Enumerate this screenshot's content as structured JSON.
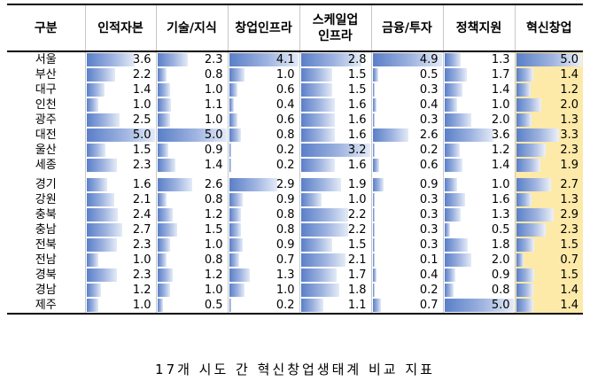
{
  "columns": [
    "구분",
    "인적자본",
    "기술/지식",
    "창업인프라",
    "스케일업\n인프라",
    "금융/투자",
    "정책지원",
    "혁신창업"
  ],
  "max_values": [
    5.0,
    5.0,
    4.1,
    3.2,
    4.9,
    5.0,
    5.0
  ],
  "rows_group1": [
    {
      "region": "서울",
      "values": [
        "3.6",
        "2.3",
        "4.1",
        "2.8",
        "4.9",
        "1.3",
        "5.0"
      ]
    },
    {
      "region": "부산",
      "values": [
        "2.2",
        "0.8",
        "1.0",
        "1.5",
        "0.5",
        "1.7",
        "1.4"
      ]
    },
    {
      "region": "대구",
      "values": [
        "1.4",
        "1.0",
        "0.6",
        "1.5",
        "0.3",
        "1.4",
        "1.2"
      ]
    },
    {
      "region": "인천",
      "values": [
        "1.0",
        "1.1",
        "0.4",
        "1.6",
        "0.4",
        "1.0",
        "2.0"
      ]
    },
    {
      "region": "광주",
      "values": [
        "2.5",
        "1.0",
        "0.6",
        "1.6",
        "0.3",
        "2.0",
        "1.3"
      ]
    },
    {
      "region": "대전",
      "values": [
        "5.0",
        "5.0",
        "0.8",
        "1.6",
        "2.6",
        "3.6",
        "3.3"
      ]
    },
    {
      "region": "울산",
      "values": [
        "1.5",
        "0.9",
        "0.2",
        "3.2",
        "0.2",
        "1.2",
        "2.3"
      ]
    },
    {
      "region": "세종",
      "values": [
        "2.3",
        "1.4",
        "0.2",
        "1.6",
        "0.6",
        "1.4",
        "1.9"
      ]
    }
  ],
  "rows_group2": [
    {
      "region": "경기",
      "values": [
        "1.6",
        "2.6",
        "2.9",
        "1.9",
        "0.9",
        "1.0",
        "2.7"
      ]
    },
    {
      "region": "강원",
      "values": [
        "2.1",
        "0.8",
        "0.9",
        "1.0",
        "0.3",
        "1.6",
        "1.3"
      ]
    },
    {
      "region": "충북",
      "values": [
        "2.4",
        "1.2",
        "0.8",
        "2.2",
        "0.3",
        "1.3",
        "2.9"
      ]
    },
    {
      "region": "충남",
      "values": [
        "2.7",
        "1.5",
        "0.8",
        "2.2",
        "0.3",
        "0.5",
        "2.3"
      ]
    },
    {
      "region": "전북",
      "values": [
        "2.3",
        "1.0",
        "0.9",
        "1.5",
        "0.3",
        "1.8",
        "1.5"
      ]
    },
    {
      "region": "전남",
      "values": [
        "1.0",
        "0.8",
        "0.7",
        "2.1",
        "0.1",
        "2.0",
        "0.7"
      ]
    },
    {
      "region": "경북",
      "values": [
        "2.3",
        "1.2",
        "1.3",
        "1.7",
        "0.4",
        "0.9",
        "1.5"
      ]
    },
    {
      "region": "경남",
      "values": [
        "1.2",
        "1.0",
        "1.0",
        "1.8",
        "0.2",
        "0.8",
        "1.4"
      ]
    },
    {
      "region": "제주",
      "values": [
        "1.0",
        "0.5",
        "0.2",
        "1.1",
        "0.7",
        "5.0",
        "1.4"
      ]
    }
  ],
  "caption": "17개 시도 간 혁신창업생태계 비교 지표",
  "colors": {
    "bar": "#5a7fc8",
    "highlight_column": "#fde9a8",
    "border": "#000000"
  }
}
